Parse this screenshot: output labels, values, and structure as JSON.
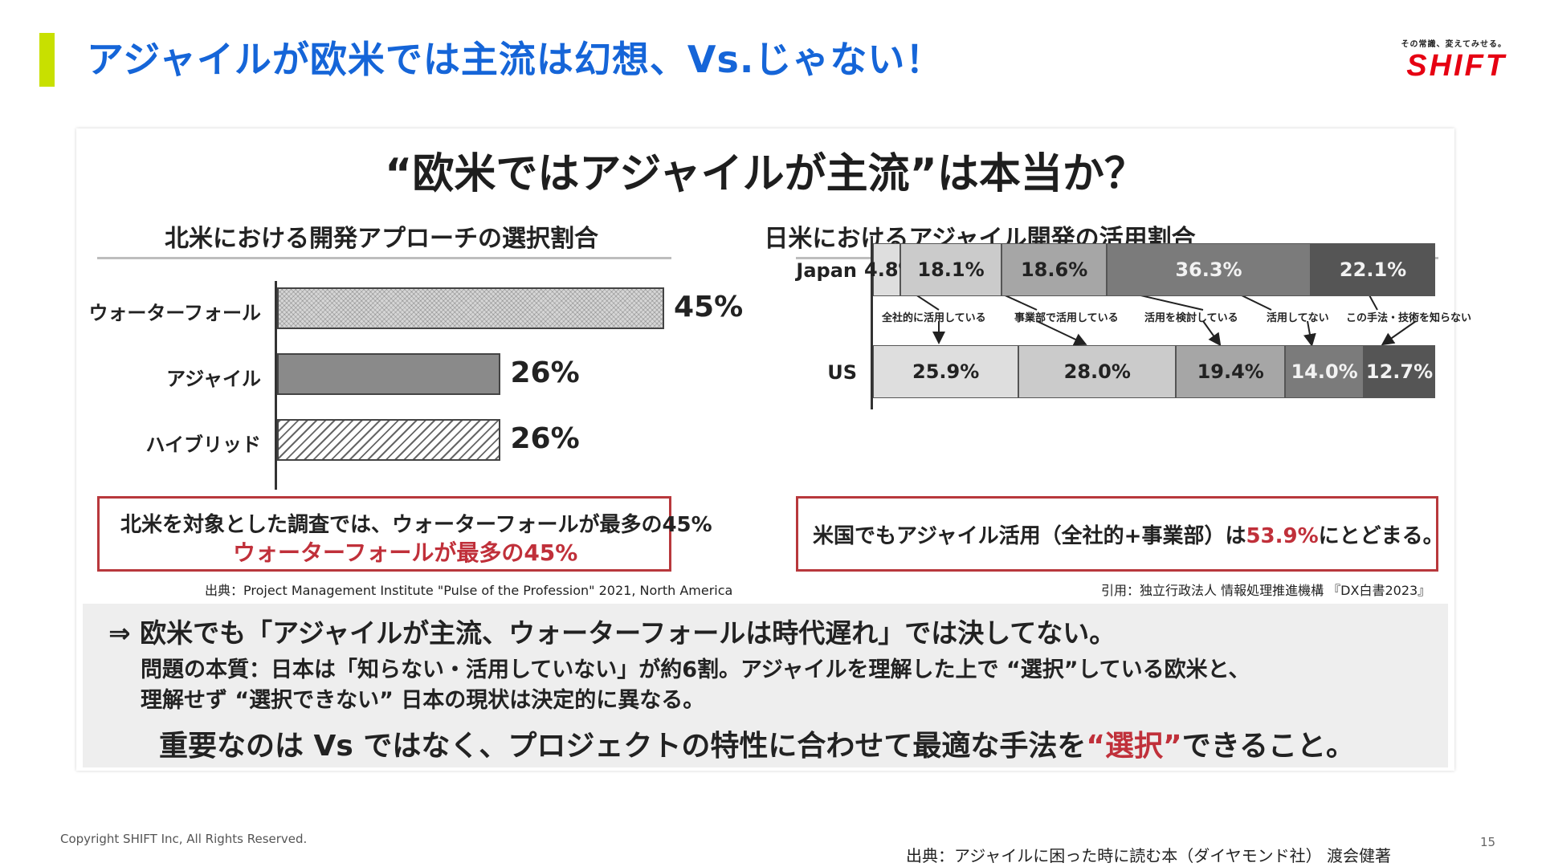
{
  "slide": {
    "title": "アジャイルが欧米では主流は幻想、Vs.じゃない！",
    "logo_tagline": "その常識、変えてみせる。",
    "logo_name": "SHIFT",
    "copyright": "Copyright SHIFT Inc, All Rights Reserved.",
    "footer_source": "出典：アジャイルに困った時に読む本（ダイヤモンド社） 渡会健著",
    "page_number": "15"
  },
  "panel": {
    "title": "“欧米ではアジャイルが主流”は本当か？",
    "left": {
      "callout_line1": "北米を対象とした調査では、ウォーターフォールが最多の45%",
      "callout_line2": "ウォーターフォールが最多の45%",
      "source": "出典：Project Management Institute \"Pulse of the Profession\" 2021, North America"
    },
    "right": {
      "callout_before": "米国でもアジャイル活用（全社的+事業部）は",
      "callout_highlight": "53.9%",
      "callout_after": "にとどまる。",
      "source": "引用：独立行政法人 情報処理推進機構 『DX白書2023』"
    },
    "bottom": {
      "line1": "⇒ 欧米でも「アジャイルが主流、ウォーターフォールは時代遅れ」では決してない。",
      "line2": "問題の本質：日本は「知らない・活用していない」が約6割。アジャイルを理解した上で “選択”している欧米と、",
      "line3": "理解せず “選択できない” 日本の現状は決定的に異なる。",
      "line4_before": "重要なのは Vs ではなく、プロジェクトの特性に合わせて最適な手法を",
      "line4_highlight": "“選択”",
      "line4_after": "できること。"
    }
  },
  "chart_data": [
    {
      "type": "bar",
      "orientation": "horizontal",
      "title": "北米における開発アプローチの選択割合",
      "categories": [
        "ウォーターフォール",
        "アジャイル",
        "ハイブリッド"
      ],
      "values": [
        45,
        26,
        26
      ],
      "value_labels": [
        "45%",
        "26%",
        "26%"
      ],
      "xlim": [
        0,
        45
      ]
    },
    {
      "type": "bar",
      "orientation": "horizontal",
      "stacked": true,
      "title": "日米におけるアジャイル開発の活用割合",
      "categories": [
        "Japan",
        "US"
      ],
      "series": [
        {
          "name": "全社的に活用している",
          "values": [
            4.8,
            25.9
          ],
          "labels": [
            "4.8%",
            "25.9%"
          ],
          "color": "#dedede"
        },
        {
          "name": "事業部で活用している",
          "values": [
            18.1,
            28.0
          ],
          "labels": [
            "18.1%",
            "28.0%"
          ],
          "color": "#cbcbcb"
        },
        {
          "name": "活用を検討している",
          "values": [
            18.6,
            19.4
          ],
          "labels": [
            "18.6%",
            "19.4%"
          ],
          "color": "#a6a6a6"
        },
        {
          "name": "活用してない",
          "values": [
            36.3,
            14.0
          ],
          "labels": [
            "36.3%",
            "14.0%"
          ],
          "color": "#7b7b7b"
        },
        {
          "name": "この手法・技術を知らない",
          "values": [
            22.1,
            12.7
          ],
          "labels": [
            "22.1%",
            "12.7%"
          ],
          "color": "#555555"
        }
      ]
    }
  ],
  "colors": {
    "accent": "#c8e000",
    "title_blue": "#1565d8",
    "brand_red": "#e60012",
    "highlight_red": "#c0303a"
  }
}
